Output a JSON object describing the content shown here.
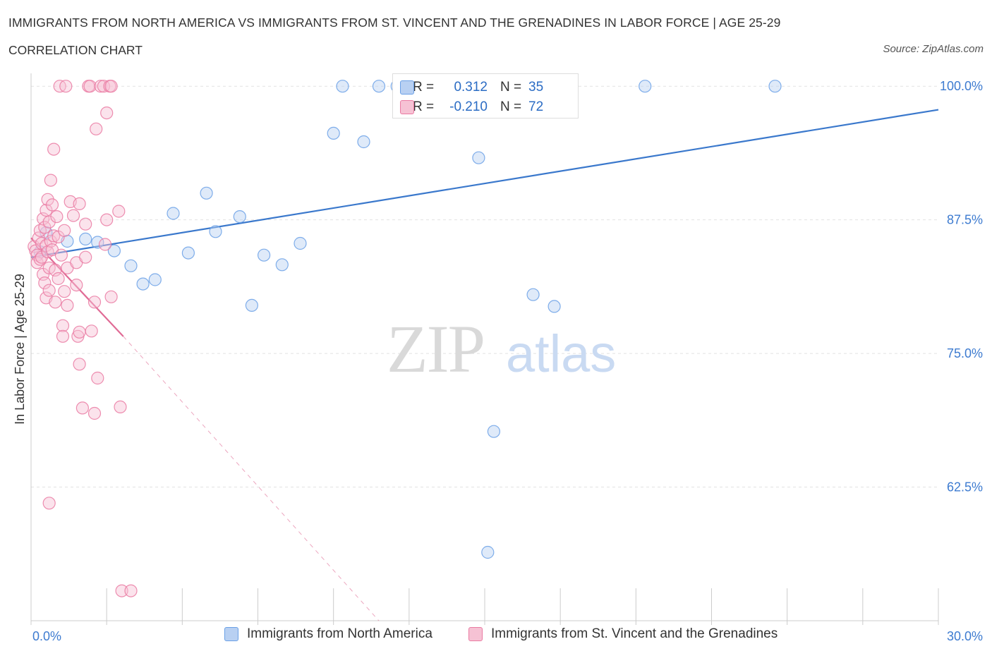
{
  "header": {
    "title": "IMMIGRANTS FROM NORTH AMERICA VS IMMIGRANTS FROM ST. VINCENT AND THE GRENADINES IN LABOR FORCE | AGE 25-29",
    "subtitle": "CORRELATION CHART",
    "source": "Source: ZipAtlas.com"
  },
  "watermark": {
    "zip": "ZIP",
    "atlas": "atlas"
  },
  "colors": {
    "blue": "#6aa0e6",
    "blue_fill": "#b8d0f2",
    "blue_line": "#3a78cc",
    "pink": "#ea7aa2",
    "pink_fill": "#f6c2d4",
    "pink_line": "#e06a95",
    "axis_label": "#3d7bd0",
    "grid": "#e2e2e2"
  },
  "stats": {
    "rows": [
      {
        "r_label": "R =",
        "r_value": "0.312",
        "n_label": "N =",
        "n_value": "35"
      },
      {
        "r_label": "R =",
        "r_value": "-0.210",
        "n_label": "N =",
        "n_value": "72"
      }
    ]
  },
  "legend": [
    {
      "label": "Immigrants from North America"
    },
    {
      "label": "Immigrants from St. Vincent and the Grenadines"
    }
  ],
  "chart_data": {
    "type": "scatter",
    "title": "IMMIGRANTS FROM NORTH AMERICA VS IMMIGRANTS FROM ST. VINCENT AND THE GRENADINES IN LABOR FORCE | AGE 25-29",
    "ylabel": "In Labor Force | Age 25-29",
    "xlabel": "",
    "xlim": [
      0,
      30
    ],
    "ylim": [
      50,
      101.2
    ],
    "x_tick_labels": [
      {
        "value": 0,
        "label": "0.0%"
      },
      {
        "value": 30,
        "label": "30.0%"
      }
    ],
    "y_tick_labels": [
      {
        "value": 100,
        "label": "100.0%"
      },
      {
        "value": 87.5,
        "label": "87.5%"
      },
      {
        "value": 75,
        "label": "75.0%"
      },
      {
        "value": 62.5,
        "label": "62.5%"
      }
    ],
    "grid": true,
    "legend_position": "bottom",
    "series": [
      {
        "name": "Immigrants from North America",
        "color": "blue",
        "points": [
          [
            0.3,
            84.5
          ],
          [
            0.5,
            86.3
          ],
          [
            1.2,
            85.5
          ],
          [
            1.8,
            85.7
          ],
          [
            2.2,
            85.4
          ],
          [
            2.75,
            84.6
          ],
          [
            3.3,
            83.2
          ],
          [
            3.7,
            81.5
          ],
          [
            4.1,
            81.9
          ],
          [
            4.7,
            88.1
          ],
          [
            5.2,
            84.4
          ],
          [
            5.8,
            90.0
          ],
          [
            6.1,
            86.4
          ],
          [
            6.9,
            87.8
          ],
          [
            7.3,
            79.5
          ],
          [
            7.7,
            84.2
          ],
          [
            8.3,
            83.3
          ],
          [
            8.9,
            85.3
          ],
          [
            10.0,
            95.6
          ],
          [
            10.3,
            100.0
          ],
          [
            11.0,
            94.8
          ],
          [
            11.5,
            100.0
          ],
          [
            12.1,
            100.0
          ],
          [
            12.6,
            100.0
          ],
          [
            13.1,
            100.0
          ],
          [
            13.7,
            100.0
          ],
          [
            14.3,
            100.0
          ],
          [
            14.8,
            93.3
          ],
          [
            15.3,
            67.7
          ],
          [
            16.1,
            100.0
          ],
          [
            16.6,
            80.5
          ],
          [
            17.3,
            79.4
          ],
          [
            15.1,
            56.4
          ],
          [
            20.3,
            100.0
          ],
          [
            24.6,
            100.0
          ]
        ],
        "trend": {
          "x": [
            0,
            30
          ],
          "y": [
            84.0,
            97.8
          ]
        }
      },
      {
        "name": "Immigrants from St. Vincent and the Grenadines",
        "color": "pink",
        "points": [
          [
            0.1,
            85.0
          ],
          [
            0.15,
            84.6
          ],
          [
            0.2,
            84.2
          ],
          [
            0.2,
            83.5
          ],
          [
            0.25,
            85.8
          ],
          [
            0.3,
            86.5
          ],
          [
            0.3,
            83.8
          ],
          [
            0.35,
            85.3
          ],
          [
            0.35,
            84.0
          ],
          [
            0.4,
            87.6
          ],
          [
            0.4,
            82.4
          ],
          [
            0.45,
            86.8
          ],
          [
            0.45,
            81.6
          ],
          [
            0.5,
            88.4
          ],
          [
            0.5,
            85.1
          ],
          [
            0.5,
            80.2
          ],
          [
            0.55,
            89.4
          ],
          [
            0.55,
            84.5
          ],
          [
            0.6,
            87.3
          ],
          [
            0.6,
            83.0
          ],
          [
            0.6,
            80.9
          ],
          [
            0.65,
            91.2
          ],
          [
            0.65,
            85.5
          ],
          [
            0.7,
            88.9
          ],
          [
            0.7,
            84.7
          ],
          [
            0.75,
            94.1
          ],
          [
            0.75,
            86.0
          ],
          [
            0.8,
            82.8
          ],
          [
            0.8,
            79.8
          ],
          [
            0.85,
            87.8
          ],
          [
            0.9,
            85.9
          ],
          [
            0.9,
            82.0
          ],
          [
            0.95,
            100.0
          ],
          [
            1.0,
            84.2
          ],
          [
            1.05,
            77.6
          ],
          [
            1.05,
            76.6
          ],
          [
            1.1,
            86.5
          ],
          [
            1.1,
            80.8
          ],
          [
            1.15,
            100.0
          ],
          [
            1.2,
            83.0
          ],
          [
            1.2,
            79.5
          ],
          [
            1.3,
            89.2
          ],
          [
            1.4,
            87.9
          ],
          [
            1.5,
            83.5
          ],
          [
            1.5,
            81.4
          ],
          [
            1.55,
            76.6
          ],
          [
            1.6,
            89.0
          ],
          [
            1.6,
            77.0
          ],
          [
            1.6,
            74.0
          ],
          [
            1.7,
            69.9
          ],
          [
            1.8,
            87.1
          ],
          [
            1.8,
            84.0
          ],
          [
            1.9,
            100.0
          ],
          [
            1.95,
            100.0
          ],
          [
            2.0,
            77.1
          ],
          [
            2.1,
            79.8
          ],
          [
            2.1,
            69.4
          ],
          [
            2.15,
            96.0
          ],
          [
            2.2,
            72.7
          ],
          [
            2.3,
            100.0
          ],
          [
            2.4,
            100.0
          ],
          [
            2.45,
            85.2
          ],
          [
            2.5,
            97.5
          ],
          [
            2.5,
            87.5
          ],
          [
            2.6,
            100.0
          ],
          [
            2.65,
            100.0
          ],
          [
            2.65,
            80.3
          ],
          [
            2.9,
            88.3
          ],
          [
            2.95,
            70.0
          ],
          [
            3.0,
            52.8
          ],
          [
            3.3,
            52.8
          ],
          [
            0.6,
            61.0
          ]
        ],
        "trend": {
          "x": [
            0,
            3.05
          ],
          "y": [
            85.8,
            76.6
          ]
        },
        "trend_extension": {
          "x": [
            3.05,
            11.5
          ],
          "y": [
            76.6,
            50.0
          ]
        }
      }
    ]
  }
}
